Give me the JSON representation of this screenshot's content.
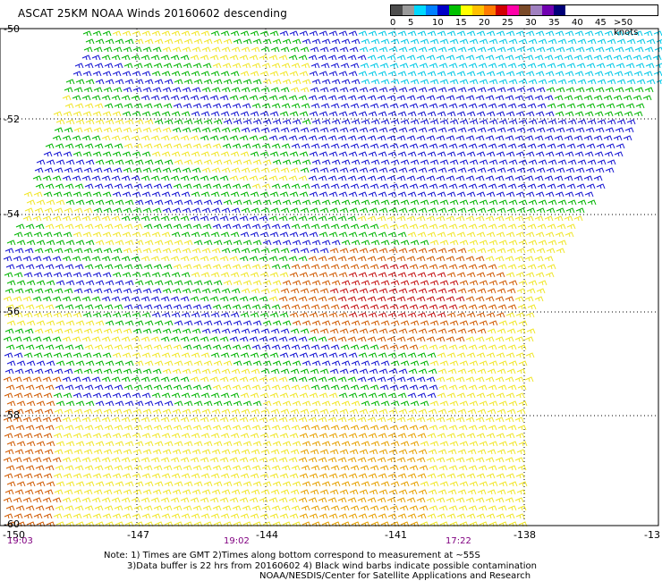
{
  "title": "ASCAT 25KM NOAA Winds 20160602 descending",
  "legend": {
    "colors": [
      "#4d4d4d",
      "#9a9a9a",
      "#00d8ff",
      "#0080ff",
      "#0000c8",
      "#00c000",
      "#ffff00",
      "#ffc000",
      "#ff7a00",
      "#d00000",
      "#ff00a8",
      "#7a4a28",
      "#a080c0",
      "#7000b0",
      "#000078"
    ],
    "labels": [
      "0",
      "5",
      "10",
      "15",
      "20",
      "25",
      "30",
      "35",
      "40",
      "45",
      ">50 knots"
    ]
  },
  "latitudes": [
    "-50",
    "-52",
    "-54",
    "-56",
    "-58",
    "-60"
  ],
  "longitudes": [
    "-150",
    "-147",
    "-144",
    "-141",
    "-138",
    "-13"
  ],
  "times": [
    "19:03",
    "19:02",
    "17:22"
  ],
  "notes": [
    "Note: 1) Times are GMT 2)Times along bottom correspond to measurement at ~55S",
    "3)Data buffer is 22 hrs from 20160602 4) Black wind barbs indicate possible contamination",
    "NOAA/NESDIS/Center for Satellite Applications and Research"
  ],
  "colors": {
    "lightblue": "#00c8e6",
    "blue": "#1414d2",
    "green": "#00b400",
    "yellow": "#f0e628",
    "orange": "#e6a000",
    "darkorange": "#d05a00",
    "red": "#c41010",
    "black": "#000000",
    "grid": "#000000"
  }
}
